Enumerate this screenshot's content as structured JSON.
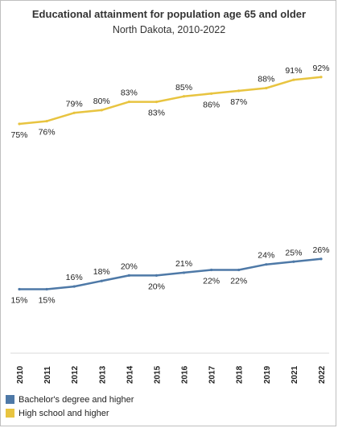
{
  "chart_data": {
    "type": "line",
    "title": "Educational attainment for population age 65 and older",
    "subtitle": "North Dakota, 2010-2022",
    "categories": [
      "2010",
      "2011",
      "2012",
      "2013",
      "2014",
      "2015",
      "2016",
      "2017",
      "2018",
      "2019",
      "2021",
      "2022"
    ],
    "series": [
      {
        "name": "Bachelor's degree and higher",
        "color": "#4e79a7",
        "values": [
          15,
          15,
          16,
          18,
          20,
          20,
          21,
          22,
          22,
          24,
          25,
          26
        ],
        "labels": [
          "15%",
          "15%",
          "16%",
          "18%",
          "20%",
          "20%",
          "21%",
          "22%",
          "22%",
          "24%",
          "25%",
          "26%"
        ]
      },
      {
        "name": "High school and higher",
        "color": "#e8c440",
        "values": [
          75,
          76,
          79,
          80,
          83,
          83,
          85,
          86,
          87,
          88,
          91,
          92
        ],
        "labels": [
          "75%",
          "76%",
          "79%",
          "80%",
          "83%",
          "83%",
          "85%",
          "86%",
          "87%",
          "88%",
          "91%",
          "92%"
        ]
      }
    ],
    "grid": false,
    "legend_position": "bottom-left"
  }
}
